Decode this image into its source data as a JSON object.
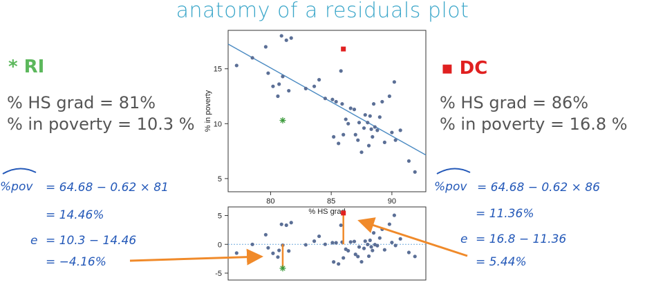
{
  "title": "anatomy of a residuals plot",
  "ri": {
    "label": "* RI",
    "hs_grad": "% HS grad = 81%",
    "poverty": "% in poverty = 10.3 %",
    "hat_label": "%pov",
    "eq1": "= 64.68 − 0.62 × 81",
    "eq2": "= 14.46%",
    "eq3_e": "e",
    "eq3": "= 10.3 − 14.46",
    "eq4": "= −4.16%"
  },
  "dc": {
    "label": "▪ DC",
    "hs_grad": "% HS grad = 86%",
    "poverty": "% in poverty = 16.8 %",
    "hat_label": "%pov",
    "eq1": "= 64.68 − 0.62 × 86",
    "eq2": "= 11.36%",
    "eq3_e": "e",
    "eq3": "= 16.8 − 11.36",
    "eq4": "= 5.44%"
  },
  "colors": {
    "title": "#3aa6c9",
    "ri": "#5cb85c",
    "dc": "#e02020",
    "points": "#5b6f96",
    "line": "#4a8ac2",
    "arrow": "#f08a2a",
    "hand": "#2358b8"
  },
  "chart_data": [
    {
      "type": "scatter",
      "xlabel": "% HS grad",
      "ylabel": "% in poverty",
      "xlim": [
        76.5,
        92.8
      ],
      "ylim": [
        3.8,
        18.5
      ],
      "xticks": [
        80,
        85,
        90
      ],
      "yticks": [
        5,
        10,
        15
      ],
      "regression": {
        "intercept": 64.68,
        "slope": -0.62
      },
      "points": [
        [
          77.2,
          15.3
        ],
        [
          78.5,
          16.0
        ],
        [
          79.6,
          17.0
        ],
        [
          79.8,
          14.6
        ],
        [
          80.2,
          13.4
        ],
        [
          80.6,
          12.5
        ],
        [
          80.7,
          13.6
        ],
        [
          80.9,
          18.0
        ],
        [
          81.0,
          14.3
        ],
        [
          81.3,
          17.6
        ],
        [
          81.5,
          13.0
        ],
        [
          81.7,
          17.8
        ],
        [
          82.9,
          13.2
        ],
        [
          83.6,
          13.4
        ],
        [
          84.0,
          14.0
        ],
        [
          84.5,
          12.3
        ],
        [
          85.1,
          12.2
        ],
        [
          85.4,
          12.0
        ],
        [
          85.8,
          14.8
        ],
        [
          85.9,
          11.8
        ],
        [
          85.2,
          8.8
        ],
        [
          85.6,
          8.2
        ],
        [
          86.0,
          9.0
        ],
        [
          86.2,
          10.4
        ],
        [
          86.4,
          10.0
        ],
        [
          86.6,
          11.4
        ],
        [
          86.9,
          11.3
        ],
        [
          87.0,
          9.0
        ],
        [
          87.2,
          8.5
        ],
        [
          87.3,
          10.1
        ],
        [
          87.5,
          7.4
        ],
        [
          87.7,
          9.6
        ],
        [
          87.8,
          10.8
        ],
        [
          88.0,
          10.1
        ],
        [
          88.1,
          8.0
        ],
        [
          88.2,
          10.7
        ],
        [
          88.3,
          9.5
        ],
        [
          88.4,
          8.8
        ],
        [
          88.5,
          11.8
        ],
        [
          88.6,
          9.7
        ],
        [
          88.8,
          9.4
        ],
        [
          89.0,
          10.6
        ],
        [
          89.2,
          12.0
        ],
        [
          89.4,
          8.3
        ],
        [
          89.8,
          12.5
        ],
        [
          90.0,
          9.2
        ],
        [
          90.2,
          13.8
        ],
        [
          90.3,
          8.5
        ],
        [
          90.7,
          9.4
        ],
        [
          91.4,
          6.6
        ],
        [
          91.9,
          5.6
        ]
      ],
      "highlight_ri": {
        "x": 81,
        "y": 10.3
      },
      "highlight_dc": {
        "x": 86,
        "y": 16.8
      }
    },
    {
      "type": "scatter",
      "xlabel": "",
      "ylabel": "",
      "xlim": [
        76.5,
        92.8
      ],
      "ylim": [
        -6.2,
        6.5
      ],
      "yticks": [
        5,
        0,
        -5
      ],
      "zero_line": true,
      "residuals": {
        "ri": {
          "x": 81,
          "y": -4.16
        },
        "dc": {
          "x": 86,
          "y": 5.44
        }
      }
    }
  ]
}
